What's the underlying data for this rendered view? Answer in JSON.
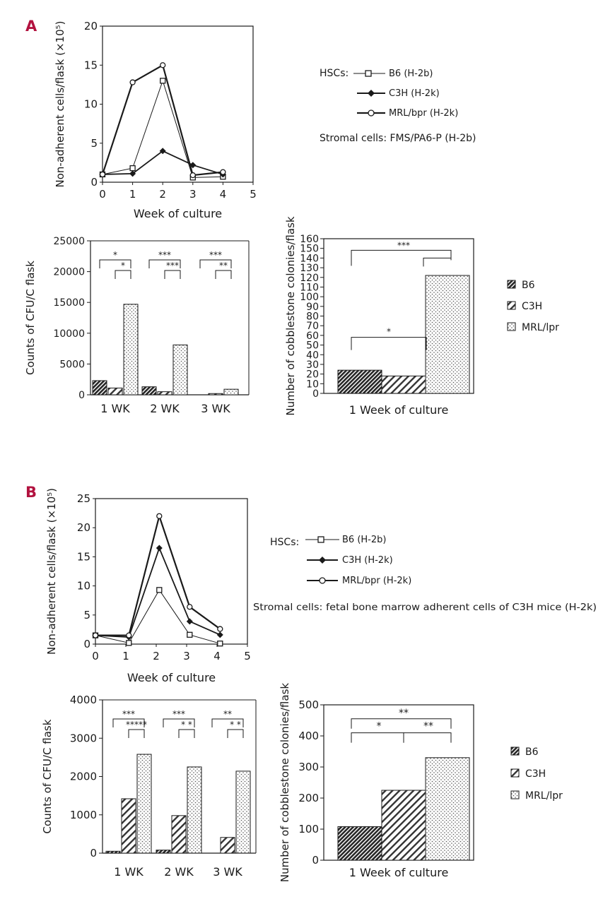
{
  "colors": {
    "panel_letter": "#b2123f",
    "ink": "#1a1a1a",
    "hatch_dense": "#262626",
    "hatch_diagonal": "#333333",
    "dots": "#555555"
  },
  "panels": {
    "A": {
      "letter": "A"
    },
    "B": {
      "letter": "B"
    }
  },
  "legend_A": {
    "hsc_label": "HSCs:",
    "items": [
      "B6 (H-2b)",
      "C3H (H-2k)",
      "MRL/bpr (H-2k)"
    ],
    "stromal": "Stromal cells: FMS/PA6-P (H-2b)"
  },
  "legend_B": {
    "hsc_label": "HSCs:",
    "items": [
      "B6 (H-2b)",
      "C3H (H-2k)",
      "MRL/bpr (H-2k)"
    ],
    "stromal": "Stromal cells: fetal bone marrow adherent cells of C3H mice (H-2k)"
  },
  "bar_legend_A": [
    "B6",
    "C3H",
    "MRL/lpr"
  ],
  "bar_legend_B": [
    "B6",
    "C3H",
    "MRL/lpr"
  ],
  "chart_data": [
    {
      "id": "A1",
      "type": "line",
      "xlabel": "Week of culture",
      "ylabel": "Non-adherent cells/flask (×10⁵)",
      "xlim": [
        0,
        5
      ],
      "ylim": [
        0,
        20
      ],
      "xticks": [
        "0",
        "1",
        "2",
        "3",
        "4",
        "5"
      ],
      "yticks": [
        "0",
        "5",
        "10",
        "15",
        "20"
      ],
      "series": [
        {
          "name": "B6 (H-2b)",
          "marker": "square",
          "x": [
            0,
            1,
            2,
            3,
            4
          ],
          "y": [
            1,
            1.8,
            13,
            0.6,
            0.7
          ]
        },
        {
          "name": "C3H (H-2k)",
          "marker": "diamond",
          "x": [
            0,
            1,
            2,
            3,
            4
          ],
          "y": [
            1,
            1.1,
            4,
            2.2,
            1
          ]
        },
        {
          "name": "MRL/bpr (H-2k)",
          "marker": "circle",
          "x": [
            0,
            1,
            2,
            3,
            4
          ],
          "y": [
            1,
            12.8,
            15,
            0.9,
            1.3
          ]
        }
      ]
    },
    {
      "id": "A2",
      "type": "bar",
      "ylabel": "Counts of CFU/C flask",
      "categories": [
        "1 WK",
        "2 WK",
        "3 WK"
      ],
      "ylim": [
        0,
        25000
      ],
      "yticks": [
        "0",
        "5000",
        "10000",
        "15000",
        "20000",
        "25000"
      ],
      "series": [
        {
          "name": "B6",
          "values": [
            2300,
            1300,
            0
          ]
        },
        {
          "name": "C3H",
          "values": [
            1100,
            500,
            200
          ]
        },
        {
          "name": "MRL/lpr",
          "values": [
            14700,
            8100,
            900
          ]
        }
      ],
      "sig": [
        [
          "*",
          "*"
        ],
        [
          "***",
          "***"
        ],
        [
          "***",
          "**"
        ]
      ]
    },
    {
      "id": "A3",
      "type": "bar",
      "ylabel": "Number of cobblestone colonies/flask",
      "xlabel": "1 Week of culture",
      "ylim": [
        0,
        160
      ],
      "yticks": [
        "0",
        "10",
        "20",
        "30",
        "40",
        "50",
        "60",
        "70",
        "80",
        "90",
        "100",
        "110",
        "120",
        "130",
        "140",
        "150",
        "160"
      ],
      "series": [
        {
          "name": "B6",
          "values": [
            24
          ]
        },
        {
          "name": "C3H",
          "values": [
            18
          ]
        },
        {
          "name": "MRL/lpr",
          "values": [
            122
          ]
        }
      ],
      "sig": [
        "***",
        "*"
      ]
    },
    {
      "id": "B1",
      "type": "line",
      "xlabel": "Week of culture",
      "ylabel": "Non-adherent cells/flask (×10⁵)",
      "xlim": [
        0,
        5
      ],
      "ylim": [
        0,
        25
      ],
      "xticks": [
        "0",
        "1",
        "2",
        "3",
        "4",
        "5"
      ],
      "yticks": [
        "0",
        "5",
        "10",
        "15",
        "20",
        "25"
      ],
      "series": [
        {
          "name": "B6 (H-2b)",
          "marker": "square",
          "x": [
            0,
            1.1,
            2.1,
            3.1,
            4.1
          ],
          "y": [
            1.5,
            0.2,
            9.3,
            1.6,
            0.1
          ]
        },
        {
          "name": "C3H (H-2k)",
          "marker": "diamond",
          "x": [
            0,
            1.1,
            2.1,
            3.1,
            4.1
          ],
          "y": [
            1.5,
            1.2,
            16.5,
            3.9,
            1.6
          ]
        },
        {
          "name": "MRL/bpr (H-2k)",
          "marker": "circle",
          "x": [
            0,
            1.1,
            2.1,
            3.1,
            4.1
          ],
          "y": [
            1.5,
            1.5,
            22,
            6.4,
            2.6
          ]
        }
      ]
    },
    {
      "id": "B2",
      "type": "bar",
      "ylabel": "Counts of CFU/C flask",
      "categories": [
        "1 WK",
        "2 WK",
        "3 WK"
      ],
      "ylim": [
        0,
        4000
      ],
      "yticks": [
        "0",
        "1000",
        "2000",
        "3000",
        "4000"
      ],
      "series": [
        {
          "name": "B6",
          "values": [
            50,
            80,
            0
          ]
        },
        {
          "name": "C3H",
          "values": [
            1420,
            980,
            410
          ]
        },
        {
          "name": "MRL/lpr",
          "values": [
            2580,
            2250,
            2140
          ]
        }
      ],
      "sig": [
        [
          "***",
          "*****"
        ],
        [
          "***",
          "* *"
        ],
        [
          "**",
          "* *"
        ]
      ]
    },
    {
      "id": "B3",
      "type": "bar",
      "ylabel": "Number of cobblestone colonies/flask",
      "xlabel": "1 Week of culture",
      "ylim": [
        0,
        500
      ],
      "yticks": [
        "0",
        "100",
        "200",
        "300",
        "400",
        "500"
      ],
      "series": [
        {
          "name": "B6",
          "values": [
            108
          ]
        },
        {
          "name": "C3H",
          "values": [
            225
          ]
        },
        {
          "name": "MRL/lpr",
          "values": [
            330
          ]
        }
      ],
      "sig": [
        "**",
        "*",
        "**"
      ]
    }
  ]
}
